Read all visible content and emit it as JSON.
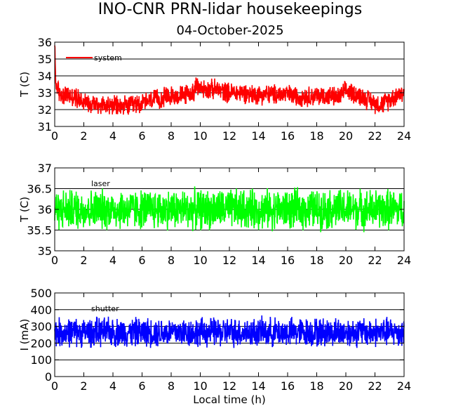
{
  "title": "INO-CNR PRN-lidar housekeepings",
  "subtitle": "04-October-2025",
  "chart_data": [
    {
      "type": "line",
      "name": "system-temperature",
      "ylabel": "T (C)",
      "xlabel": "",
      "xlim": [
        0,
        24
      ],
      "ylim": [
        31,
        36
      ],
      "xticks": [
        0,
        2,
        4,
        6,
        8,
        10,
        12,
        14,
        16,
        18,
        20,
        22,
        24
      ],
      "yticks": [
        31,
        32,
        33,
        34,
        35,
        36
      ],
      "grid": true,
      "legend": "top-left",
      "series": [
        {
          "name": "system",
          "color": "#ff0000",
          "x": [
            0,
            0.05,
            0.1,
            0.3,
            0.6,
            1.0,
            1.5,
            2.0,
            2.5,
            3.0,
            3.5,
            4.0,
            4.5,
            5.0,
            5.5,
            6.0,
            6.5,
            7.0,
            7.5,
            8.0,
            8.5,
            9.0,
            9.5,
            9.7,
            10.0,
            10.5,
            11.0,
            11.5,
            12.0,
            12.5,
            13.0,
            13.5,
            14.0,
            14.5,
            15.0,
            15.5,
            16.0,
            16.5,
            17.0,
            17.5,
            18.0,
            18.5,
            19.0,
            19.5,
            20.0,
            20.5,
            21.0,
            21.5,
            22.0,
            22.5,
            23.0,
            23.5,
            24.0
          ],
          "y": [
            35.8,
            34.2,
            33.4,
            33.0,
            32.9,
            32.8,
            32.7,
            32.5,
            32.4,
            32.3,
            32.3,
            32.2,
            32.2,
            32.2,
            32.3,
            32.4,
            32.5,
            32.6,
            32.7,
            32.8,
            32.8,
            32.9,
            33.0,
            33.3,
            33.3,
            33.2,
            33.2,
            33.1,
            33.0,
            33.0,
            33.0,
            32.9,
            32.9,
            32.9,
            32.9,
            32.9,
            32.9,
            32.8,
            32.8,
            32.8,
            32.8,
            32.8,
            32.8,
            32.7,
            33.1,
            33.0,
            32.8,
            32.6,
            32.4,
            32.3,
            32.6,
            32.9,
            33.0
          ],
          "spread": 1.0
        }
      ]
    },
    {
      "type": "line",
      "name": "laser-temperature",
      "ylabel": "T (C)",
      "xlabel": "",
      "xlim": [
        0,
        24
      ],
      "ylim": [
        35,
        37
      ],
      "xticks": [
        0,
        2,
        4,
        6,
        8,
        10,
        12,
        14,
        16,
        18,
        20,
        22,
        24
      ],
      "yticks": [
        35,
        35.5,
        36,
        36.5,
        37
      ],
      "grid": true,
      "legend": "top-left",
      "series": [
        {
          "name": "laser",
          "color": "#00ff00",
          "x": [
            0,
            24
          ],
          "y": [
            36.0,
            36.0
          ],
          "spread": 0.8
        }
      ]
    },
    {
      "type": "line",
      "name": "laser-current",
      "ylabel": "I (mA)",
      "xlabel": "Local time (h)",
      "xlim": [
        0,
        24
      ],
      "ylim": [
        0,
        500
      ],
      "xticks": [
        0,
        2,
        4,
        6,
        8,
        10,
        12,
        14,
        16,
        18,
        20,
        22,
        24
      ],
      "yticks": [
        0,
        100,
        200,
        300,
        400,
        500
      ],
      "grid": true,
      "legend": "top-left",
      "series": [
        {
          "name": "shutter",
          "color": "#0000ff",
          "x": [
            0,
            24
          ],
          "y": [
            265,
            265
          ],
          "spread": 145
        }
      ]
    }
  ]
}
